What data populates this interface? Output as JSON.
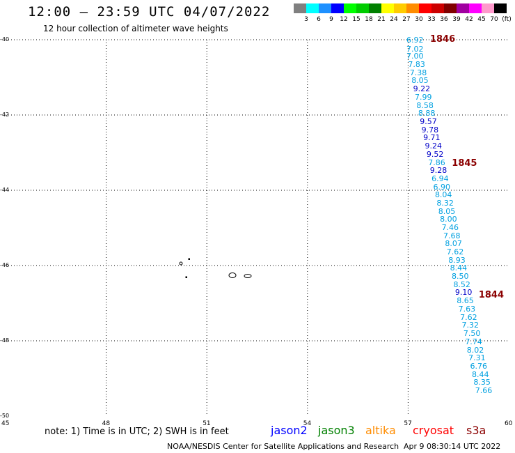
{
  "header": {
    "title": "12:00 – 23:59 UTC 04/07/2022",
    "subtitle": "12 hour collection of altimeter wave heights"
  },
  "legend": {
    "unit": "(ft)",
    "items": [
      {
        "label": "3",
        "color": "#808080"
      },
      {
        "label": "6",
        "color": "#00ffff"
      },
      {
        "label": "9",
        "color": "#1e90ff"
      },
      {
        "label": "12",
        "color": "#0000ff"
      },
      {
        "label": "15",
        "color": "#00ff00"
      },
      {
        "label": "18",
        "color": "#00cc00"
      },
      {
        "label": "21",
        "color": "#008000"
      },
      {
        "label": "24",
        "color": "#ffff00"
      },
      {
        "label": "27",
        "color": "#ffcc00"
      },
      {
        "label": "30",
        "color": "#ff8c00"
      },
      {
        "label": "33",
        "color": "#ff0000"
      },
      {
        "label": "36",
        "color": "#cc0000"
      },
      {
        "label": "39",
        "color": "#800000"
      },
      {
        "label": "42",
        "color": "#a000a0"
      },
      {
        "label": "45",
        "color": "#ff00ff"
      },
      {
        "label": "70",
        "color": "#ff99cc"
      },
      {
        "label": "",
        "color": "#000000"
      }
    ]
  },
  "axes": {
    "lat_labels": [
      "-40",
      "-42",
      "-44",
      "-46",
      "-48",
      "-50"
    ],
    "lon_labels": [
      "45",
      "48",
      "51",
      "54",
      "57",
      "60"
    ]
  },
  "track": {
    "colors": {
      "light": "#00a0e0",
      "dark": "#0000c8",
      "time": "#8b0000"
    },
    "times": [
      {
        "label": "1846",
        "lat": -40.0
      },
      {
        "label": "1845",
        "lat": -43.3
      },
      {
        "label": "1844",
        "lat": -46.8
      }
    ],
    "points": [
      {
        "lon": 57.24,
        "lat": -40.02,
        "v": "6.92",
        "dark": false
      },
      {
        "lon": 57.24,
        "lat": -40.25,
        "v": "7.02",
        "dark": false
      },
      {
        "lon": 57.24,
        "lat": -40.45,
        "v": "7.00",
        "dark": false
      },
      {
        "lon": 57.29,
        "lat": -40.67,
        "v": "7.83",
        "dark": false
      },
      {
        "lon": 57.34,
        "lat": -40.88,
        "v": "7.38",
        "dark": false
      },
      {
        "lon": 57.39,
        "lat": -41.1,
        "v": "8.05",
        "dark": false
      },
      {
        "lon": 57.44,
        "lat": -41.32,
        "v": "9.22",
        "dark": true
      },
      {
        "lon": 57.49,
        "lat": -41.53,
        "v": "7.99",
        "dark": false
      },
      {
        "lon": 57.54,
        "lat": -41.75,
        "v": "8.58",
        "dark": false
      },
      {
        "lon": 57.59,
        "lat": -41.97,
        "v": "8.88",
        "dark": false
      },
      {
        "lon": 57.64,
        "lat": -42.18,
        "v": "9.57",
        "dark": true
      },
      {
        "lon": 57.69,
        "lat": -42.4,
        "v": "9.78",
        "dark": true
      },
      {
        "lon": 57.74,
        "lat": -42.62,
        "v": "9.71",
        "dark": true
      },
      {
        "lon": 57.79,
        "lat": -42.83,
        "v": "9.24",
        "dark": true
      },
      {
        "lon": 57.84,
        "lat": -43.05,
        "v": "9.52",
        "dark": true
      },
      {
        "lon": 57.89,
        "lat": -43.27,
        "v": "7.86",
        "dark": false
      },
      {
        "lon": 57.94,
        "lat": -43.48,
        "v": "9.28",
        "dark": true
      },
      {
        "lon": 57.99,
        "lat": -43.7,
        "v": "6.94",
        "dark": false
      },
      {
        "lon": 58.04,
        "lat": -43.92,
        "v": "6.90",
        "dark": false
      },
      {
        "lon": 58.09,
        "lat": -44.13,
        "v": "8.04",
        "dark": false
      },
      {
        "lon": 58.14,
        "lat": -44.35,
        "v": "8.32",
        "dark": false
      },
      {
        "lon": 58.19,
        "lat": -44.57,
        "v": "8.05",
        "dark": false
      },
      {
        "lon": 58.24,
        "lat": -44.78,
        "v": "8.00",
        "dark": false
      },
      {
        "lon": 58.29,
        "lat": -45.0,
        "v": "7.46",
        "dark": false
      },
      {
        "lon": 58.34,
        "lat": -45.22,
        "v": "7.68",
        "dark": false
      },
      {
        "lon": 58.39,
        "lat": -45.43,
        "v": "8.07",
        "dark": false
      },
      {
        "lon": 58.44,
        "lat": -45.65,
        "v": "7.62",
        "dark": false
      },
      {
        "lon": 58.49,
        "lat": -45.87,
        "v": "8.93",
        "dark": false
      },
      {
        "lon": 58.54,
        "lat": -46.08,
        "v": "8.44",
        "dark": false
      },
      {
        "lon": 58.59,
        "lat": -46.3,
        "v": "8.50",
        "dark": false
      },
      {
        "lon": 58.64,
        "lat": -46.52,
        "v": "8.52",
        "dark": false
      },
      {
        "lon": 58.69,
        "lat": -46.73,
        "v": "9.10",
        "dark": true
      },
      {
        "lon": 58.74,
        "lat": -46.95,
        "v": "8.65",
        "dark": false
      },
      {
        "lon": 58.79,
        "lat": -47.17,
        "v": "7.63",
        "dark": false
      },
      {
        "lon": 58.84,
        "lat": -47.38,
        "v": "7.62",
        "dark": false
      },
      {
        "lon": 58.89,
        "lat": -47.6,
        "v": "7.32",
        "dark": false
      },
      {
        "lon": 58.94,
        "lat": -47.82,
        "v": "7.50",
        "dark": false
      },
      {
        "lon": 58.99,
        "lat": -48.03,
        "v": "7.74",
        "dark": false
      },
      {
        "lon": 59.04,
        "lat": -48.25,
        "v": "8.02",
        "dark": false
      },
      {
        "lon": 59.09,
        "lat": -48.47,
        "v": "7.31",
        "dark": false
      },
      {
        "lon": 59.14,
        "lat": -48.68,
        "v": "6.76",
        "dark": false
      },
      {
        "lon": 59.19,
        "lat": -48.9,
        "v": "8.44",
        "dark": false
      },
      {
        "lon": 59.24,
        "lat": -49.12,
        "v": "8.35",
        "dark": false
      },
      {
        "lon": 59.29,
        "lat": -49.33,
        "v": "7.66",
        "dark": false
      }
    ]
  },
  "footer": {
    "note": "note:  1) Time is in UTC;  2) SWH is in feet",
    "satellites": [
      {
        "name": "jason2",
        "color": "#0000ff"
      },
      {
        "name": "jason3",
        "color": "#008000"
      },
      {
        "name": "altika",
        "color": "#ff8c00"
      },
      {
        "name": "cryosat",
        "color": "#ff0000"
      },
      {
        "name": "s3a",
        "color": "#8b0000"
      }
    ],
    "credit": "NOAA/NESDIS Center for Satellite Applications and Research",
    "timestamp": "Apr  9 08:30:14 UTC 2022"
  }
}
